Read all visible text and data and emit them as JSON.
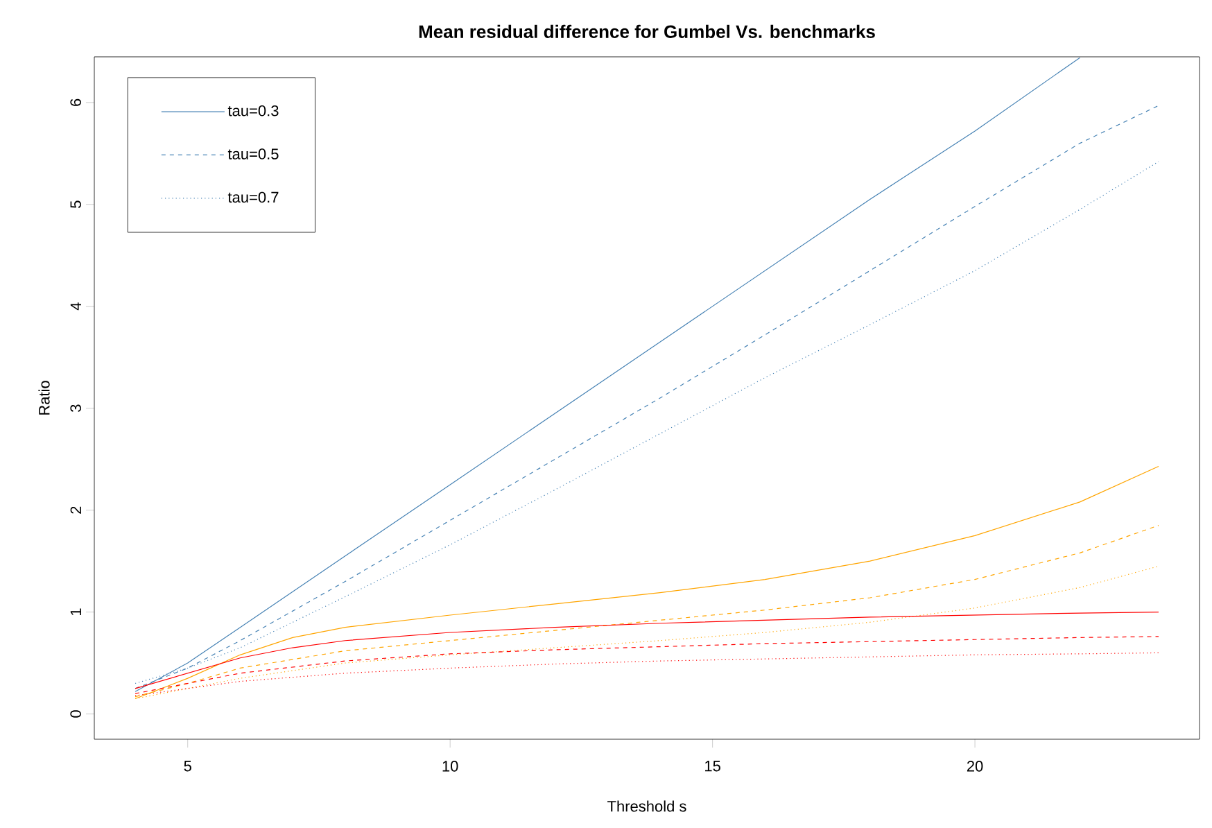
{
  "chart_data": {
    "type": "line",
    "title": "Mean residual difference for Gumbel Vs. benchmarks",
    "xlabel": "Threshold s",
    "ylabel": "Ratio",
    "xlim": [
      3.22,
      24.28
    ],
    "ylim": [
      -0.248,
      6.448
    ],
    "xticks": [
      5,
      10,
      15,
      20
    ],
    "yticks": [
      0,
      1,
      2,
      3,
      4,
      5,
      6
    ],
    "grid": false,
    "legend": "top left",
    "marker": "none",
    "series": [
      {
        "name": "tau=0.3",
        "color": "#4682b4",
        "line_style": "solid",
        "x": [
          4,
          5,
          6,
          8,
          10,
          12,
          14,
          16,
          18,
          20,
          22
        ],
        "values": [
          0.22,
          0.5,
          0.85,
          1.55,
          2.25,
          2.95,
          3.65,
          4.35,
          5.05,
          5.72,
          6.44
        ]
      },
      {
        "name": "tau=0.5",
        "color": "#4682b4",
        "line_style": "dashed",
        "x": [
          4,
          5,
          6,
          8,
          10,
          12,
          14,
          16,
          18,
          20,
          22,
          23.5
        ],
        "values": [
          0.25,
          0.45,
          0.72,
          1.3,
          1.9,
          2.5,
          3.1,
          3.72,
          4.35,
          4.98,
          5.6,
          5.97
        ]
      },
      {
        "name": "tau=0.7",
        "color": "#4682b4",
        "line_style": "dotted",
        "x": [
          4,
          5,
          6,
          8,
          10,
          12,
          14,
          16,
          18,
          20,
          22,
          23.5
        ],
        "values": [
          0.3,
          0.45,
          0.65,
          1.15,
          1.66,
          2.2,
          2.75,
          3.3,
          3.82,
          4.35,
          4.95,
          5.42
        ]
      },
      {
        "color": "#ffa500",
        "line_style": "solid",
        "x": [
          4,
          5,
          6,
          7,
          8,
          10,
          12,
          14,
          16,
          18,
          20,
          22,
          23.5
        ],
        "values": [
          0.15,
          0.35,
          0.58,
          0.75,
          0.85,
          0.97,
          1.08,
          1.19,
          1.32,
          1.5,
          1.75,
          2.08,
          2.43
        ]
      },
      {
        "color": "#ffa500",
        "line_style": "dashed",
        "x": [
          4,
          5,
          6,
          8,
          10,
          12,
          14,
          16,
          18,
          20,
          22,
          23.5
        ],
        "values": [
          0.17,
          0.3,
          0.45,
          0.62,
          0.72,
          0.82,
          0.92,
          1.02,
          1.14,
          1.32,
          1.58,
          1.85
        ]
      },
      {
        "color": "#ffa500",
        "line_style": "dotted",
        "x": [
          4,
          5,
          6,
          8,
          10,
          12,
          14,
          16,
          18,
          20,
          22,
          23.5
        ],
        "values": [
          0.15,
          0.25,
          0.35,
          0.5,
          0.58,
          0.65,
          0.72,
          0.8,
          0.9,
          1.04,
          1.24,
          1.45
        ]
      },
      {
        "color": "#ff0000",
        "line_style": "solid",
        "x": [
          4,
          5,
          6,
          7,
          8,
          10,
          12,
          14,
          16,
          18,
          20,
          22,
          23.5
        ],
        "values": [
          0.25,
          0.4,
          0.55,
          0.65,
          0.72,
          0.8,
          0.85,
          0.89,
          0.92,
          0.95,
          0.97,
          0.99,
          1.0
        ]
      },
      {
        "color": "#ff0000",
        "line_style": "dashed",
        "x": [
          4,
          5,
          6,
          8,
          10,
          12,
          14,
          16,
          18,
          20,
          22,
          23.5
        ],
        "values": [
          0.2,
          0.3,
          0.4,
          0.52,
          0.59,
          0.63,
          0.66,
          0.69,
          0.71,
          0.73,
          0.75,
          0.76
        ]
      },
      {
        "color": "#ff0000",
        "line_style": "dotted",
        "x": [
          4,
          5,
          6,
          8,
          10,
          12,
          14,
          16,
          18,
          20,
          22,
          23.5
        ],
        "values": [
          0.18,
          0.25,
          0.32,
          0.4,
          0.45,
          0.49,
          0.52,
          0.54,
          0.56,
          0.58,
          0.59,
          0.6
        ]
      }
    ]
  }
}
